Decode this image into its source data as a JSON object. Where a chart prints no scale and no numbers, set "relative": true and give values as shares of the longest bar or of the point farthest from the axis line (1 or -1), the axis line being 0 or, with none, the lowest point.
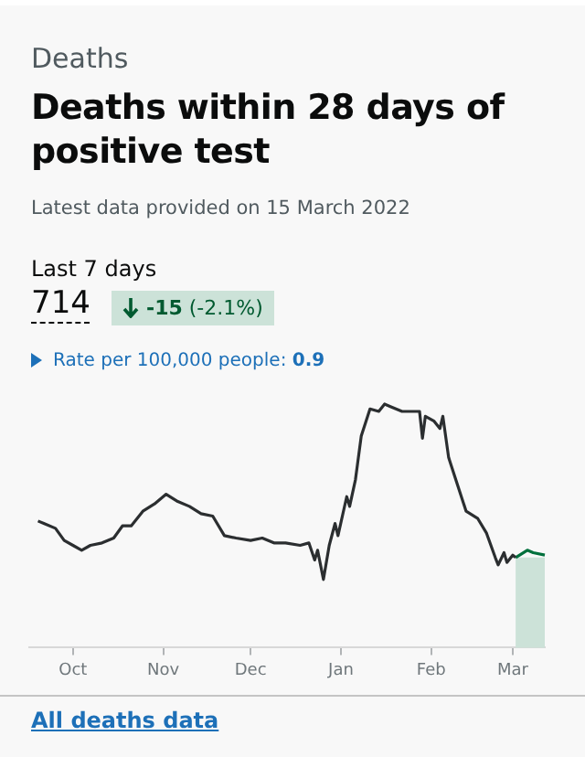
{
  "chart_data": {
    "type": "line",
    "subtitle": "Deaths",
    "title": "Deaths within 28 days of positive test",
    "annotations": [
      "Latest data provided on 15 March 2022",
      "Last 7 days",
      "714",
      "-15",
      "(-2.1%)",
      "Rate per 100,000 people:",
      "0.9",
      "All deaths data"
    ],
    "relative": true,
    "xlim": [
      "2021-09-16",
      "2022-03-12"
    ],
    "xticks": [
      {
        "value": "2021-10-01",
        "label": "Oct"
      },
      {
        "value": "2021-11-01",
        "label": "Nov"
      },
      {
        "value": "2021-12-01",
        "label": "Dec"
      },
      {
        "value": "2022-01-01",
        "label": "Jan"
      },
      {
        "value": "2022-02-01",
        "label": "Feb"
      },
      {
        "value": "2022-03-01",
        "label": "Mar"
      }
    ],
    "series": [
      {
        "color": "#2b2e30",
        "x": [
          "2021-09-19",
          "2021-09-21",
          "2021-09-25",
          "2021-09-28",
          "2021-10-01",
          "2021-10-04",
          "2021-10-07",
          "2021-10-11",
          "2021-10-15",
          "2021-10-18",
          "2021-10-21",
          "2021-10-25",
          "2021-10-29",
          "2021-11-02",
          "2021-11-06",
          "2021-11-10",
          "2021-11-14",
          "2021-11-18",
          "2021-11-22",
          "2021-11-26",
          "2021-12-01",
          "2021-12-05",
          "2021-12-09",
          "2021-12-13",
          "2021-12-18",
          "2021-12-21",
          "2021-12-23",
          "2021-12-24",
          "2021-12-26",
          "2021-12-28",
          "2021-12-30",
          "2021-12-31",
          "2022-01-03",
          "2022-01-04",
          "2022-01-06",
          "2022-01-08",
          "2022-01-11",
          "2022-01-14",
          "2022-01-16",
          "2022-01-18",
          "2022-01-22",
          "2022-01-28",
          "2022-01-29",
          "2022-01-30",
          "2022-02-02",
          "2022-02-04",
          "2022-02-05",
          "2022-02-07",
          "2022-02-10",
          "2022-02-13",
          "2022-02-17",
          "2022-02-20",
          "2022-02-23",
          "2022-02-24",
          "2022-02-26",
          "2022-02-27",
          "2022-03-01",
          "2022-03-02"
        ],
        "values": [
          0.52,
          0.51,
          0.49,
          0.44,
          0.42,
          0.4,
          0.42,
          0.43,
          0.45,
          0.5,
          0.5,
          0.56,
          0.59,
          0.63,
          0.6,
          0.58,
          0.55,
          0.54,
          0.46,
          0.45,
          0.44,
          0.45,
          0.43,
          0.43,
          0.42,
          0.43,
          0.36,
          0.4,
          0.28,
          0.42,
          0.51,
          0.46,
          0.62,
          0.58,
          0.69,
          0.87,
          0.98,
          0.97,
          1,
          0.99,
          0.97,
          0.97,
          0.86,
          0.95,
          0.93,
          0.9,
          0.95,
          0.78,
          0.67,
          0.56,
          0.53,
          0.47,
          0.37,
          0.34,
          0.39,
          0.35,
          0.38,
          0.37
        ]
      },
      {
        "color": "#00703c",
        "x": [
          "2022-03-02",
          "2022-03-06",
          "2022-03-08",
          "2022-03-12"
        ],
        "values": [
          0.37,
          0.4,
          0.39,
          0.38
        ]
      }
    ],
    "bands": [
      {
        "axis": "x",
        "from": "2022-03-02",
        "to": "2022-03-12",
        "color": "#cce2d8"
      }
    ]
  }
}
